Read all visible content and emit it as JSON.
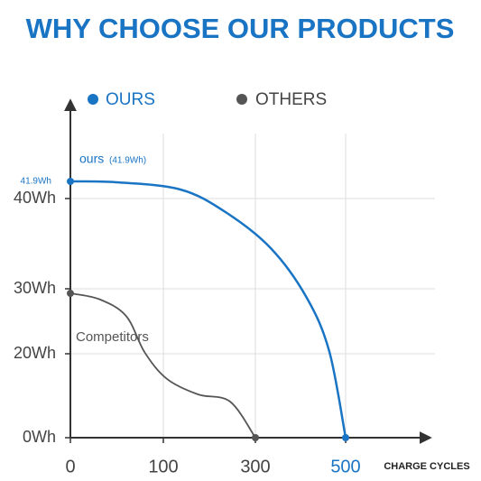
{
  "chart_data": {
    "type": "line",
    "title": "WHY CHOOSE OUR PRODUCTS",
    "x_label": "CHARGE CYCLES",
    "xticks": [
      0,
      100,
      300,
      500
    ],
    "yticks": [
      {
        "value": 0,
        "label": "0Wh"
      },
      {
        "value": 20,
        "label": "20Wh"
      },
      {
        "value": 30,
        "label": "30Wh"
      },
      {
        "value": 40,
        "label": "40Wh"
      }
    ],
    "grid": true,
    "series": [
      {
        "name": "OURS",
        "color": "#1a74c4",
        "x": [
          0,
          50,
          137,
          235,
          334,
          414,
          464,
          500
        ],
        "values": [
          41.9,
          41.8,
          41,
          38.5,
          34.5,
          28.6,
          20.3,
          0
        ]
      },
      {
        "name": "OTHERS",
        "color": "#555555",
        "x": [
          0,
          31,
          60,
          80,
          108,
          176,
          245,
          300
        ],
        "values": [
          29.3,
          28.4,
          25.8,
          20.2,
          14,
          10.3,
          8.6,
          0
        ]
      }
    ],
    "annotations": [
      {
        "text": "41.9Wh",
        "value": 41.9
      },
      {
        "text": "ours",
        "note": "(41.9Wh)"
      },
      {
        "text": "Competitors"
      }
    ]
  }
}
